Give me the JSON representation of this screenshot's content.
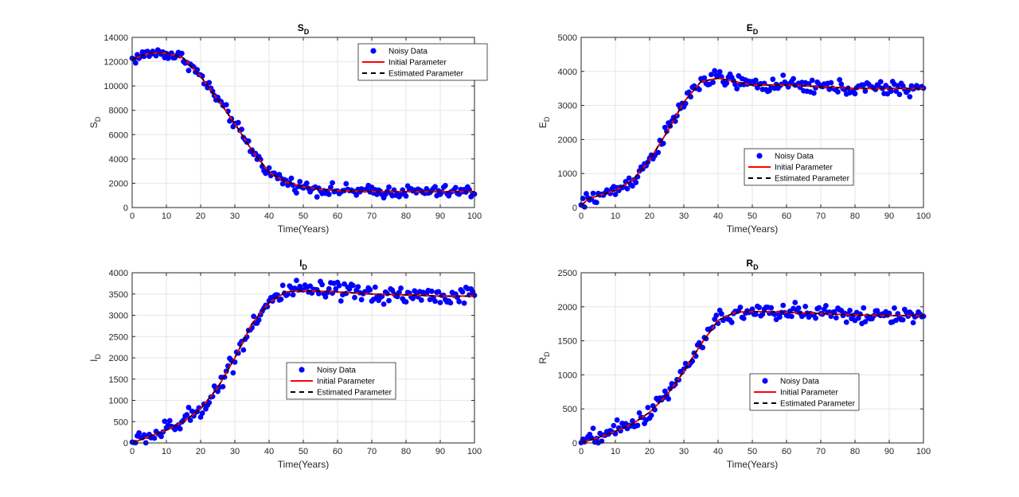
{
  "colors": {
    "noisy": "#0000ff",
    "initial": "#ff0000",
    "estimated": "#000000",
    "grid": "#e6e6e6",
    "axis": "#262626"
  },
  "chart_data": [
    {
      "type": "scatter",
      "title": "S",
      "title_sub": "D",
      "xlabel": "Time(Years)",
      "ylabel": "S",
      "ylabel_sub": "D",
      "xlim": [
        0,
        100
      ],
      "ylim": [
        0,
        14000
      ],
      "xticks": [
        0,
        10,
        20,
        30,
        40,
        50,
        60,
        70,
        80,
        90,
        100
      ],
      "yticks": [
        0,
        2000,
        4000,
        6000,
        8000,
        10000,
        12000,
        14000
      ],
      "grid": true,
      "legend_position": "top-right",
      "legend": [
        "Noisy Data",
        "Initial Parameter",
        "Estimated Parameter"
      ],
      "curve": {
        "x": [
          0,
          5,
          10,
          15,
          20,
          25,
          30,
          35,
          40,
          45,
          50,
          55,
          60,
          70,
          80,
          90,
          100
        ],
        "y": [
          12200,
          12700,
          12700,
          12300,
          10800,
          8900,
          6900,
          4700,
          2900,
          2100,
          1700,
          1500,
          1400,
          1300,
          1300,
          1300,
          1300
        ]
      },
      "noise_amplitude": 450
    },
    {
      "type": "scatter",
      "title": "E",
      "title_sub": "D",
      "xlabel": "Time(Years)",
      "ylabel": "E",
      "ylabel_sub": "D",
      "xlim": [
        0,
        100
      ],
      "ylim": [
        0,
        5000
      ],
      "xticks": [
        0,
        10,
        20,
        30,
        40,
        50,
        60,
        70,
        80,
        90,
        100
      ],
      "yticks": [
        0,
        1000,
        2000,
        3000,
        4000,
        5000
      ],
      "grid": true,
      "legend_position": "center",
      "legend": [
        "Noisy Data",
        "Initial Parameter",
        "Estimated Parameter"
      ],
      "curve": {
        "x": [
          0,
          2,
          5,
          10,
          15,
          20,
          25,
          30,
          35,
          40,
          45,
          50,
          60,
          70,
          80,
          90,
          100
        ],
        "y": [
          50,
          250,
          350,
          500,
          800,
          1400,
          2200,
          3100,
          3700,
          3800,
          3700,
          3600,
          3600,
          3550,
          3500,
          3500,
          3500
        ]
      },
      "noise_amplitude": 200
    },
    {
      "type": "scatter",
      "title": "I",
      "title_sub": "D",
      "xlabel": "Time(Years)",
      "ylabel": "I",
      "ylabel_sub": "D",
      "xlim": [
        0,
        100
      ],
      "ylim": [
        0,
        4000
      ],
      "xticks": [
        0,
        10,
        20,
        30,
        40,
        50,
        60,
        70,
        80,
        90,
        100
      ],
      "yticks": [
        0,
        500,
        1000,
        1500,
        2000,
        2500,
        3000,
        3500,
        4000
      ],
      "grid": true,
      "legend_position": "center",
      "legend": [
        "Noisy Data",
        "Initial Parameter",
        "Estimated Parameter"
      ],
      "curve": {
        "x": [
          0,
          5,
          10,
          15,
          20,
          25,
          30,
          35,
          40,
          45,
          50,
          60,
          70,
          80,
          90,
          100
        ],
        "y": [
          0,
          150,
          300,
          500,
          800,
          1300,
          2000,
          2800,
          3300,
          3550,
          3580,
          3550,
          3500,
          3480,
          3450,
          3450
        ]
      },
      "noise_amplitude": 200
    },
    {
      "type": "scatter",
      "title": "R",
      "title_sub": "D",
      "xlabel": "Time(Years)",
      "ylabel": "R",
      "ylabel_sub": "D",
      "xlim": [
        0,
        100
      ],
      "ylim": [
        0,
        2500
      ],
      "xticks": [
        0,
        10,
        20,
        30,
        40,
        50,
        60,
        70,
        80,
        90,
        100
      ],
      "yticks": [
        0,
        500,
        1000,
        1500,
        2000,
        2500
      ],
      "grid": true,
      "legend_position": "bottom-center",
      "legend": [
        "Noisy Data",
        "Initial Parameter",
        "Estimated Parameter"
      ],
      "curve": {
        "x": [
          0,
          5,
          10,
          15,
          20,
          25,
          30,
          35,
          40,
          45,
          50,
          60,
          70,
          80,
          90,
          100
        ],
        "y": [
          0,
          80,
          170,
          280,
          450,
          700,
          1050,
          1450,
          1800,
          1920,
          1930,
          1920,
          1900,
          1880,
          1870,
          1870
        ]
      },
      "noise_amplitude": 110
    }
  ]
}
